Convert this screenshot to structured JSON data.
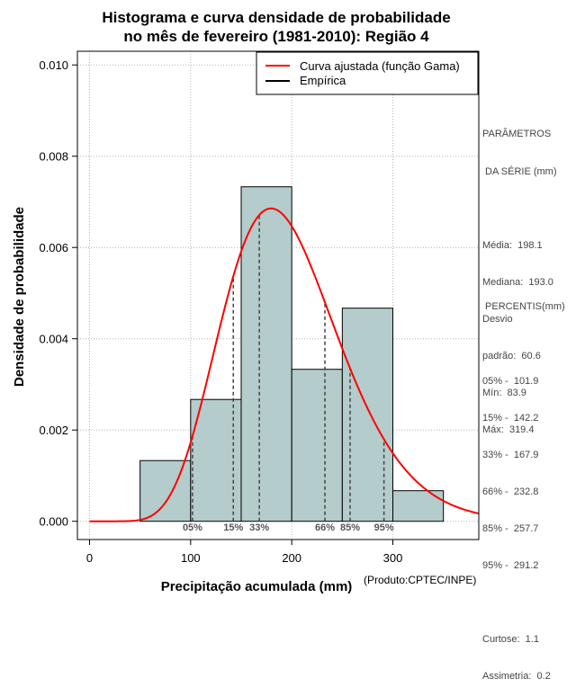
{
  "chart_data": {
    "type": "bar",
    "title_line1": "Histograma e curva densidade de probabilidade",
    "title_line2": "no mês de fevereiro (1981-2010): Região 4",
    "xlabel": "Precipitação acumulada (mm)",
    "ylabel": "Densidade de probabilidade",
    "xlim": [
      -12,
      385
    ],
    "ylim": [
      -0.0004,
      0.0103
    ],
    "x_ticks": [
      0,
      100,
      200,
      300
    ],
    "y_ticks": [
      0.0,
      0.002,
      0.004,
      0.006,
      0.008,
      0.01
    ],
    "y_tick_labels": [
      "0.000",
      "0.002",
      "0.004",
      "0.006",
      "0.008",
      "0.010"
    ],
    "bins": [
      {
        "from": 50,
        "to": 100,
        "density": 0.00133
      },
      {
        "from": 100,
        "to": 150,
        "density": 0.00267
      },
      {
        "from": 150,
        "to": 200,
        "density": 0.00733
      },
      {
        "from": 200,
        "to": 250,
        "density": 0.00333
      },
      {
        "from": 250,
        "to": 300,
        "density": 0.00467
      },
      {
        "from": 300,
        "to": 350,
        "density": 0.00067
      }
    ],
    "gamma_curve": {
      "name": "Curva ajustada (função Gama)",
      "mean": 198.1,
      "sd": 60.6,
      "color": "#ff0000"
    },
    "percentile_lines": [
      {
        "label": "05%",
        "x": 101.9
      },
      {
        "label": "15%",
        "x": 142.2
      },
      {
        "label": "33%",
        "x": 167.9
      },
      {
        "label": "66%",
        "x": 232.8
      },
      {
        "label": "85%",
        "x": 257.7
      },
      {
        "label": "95%",
        "x": 291.2
      }
    ],
    "legend": [
      {
        "label": "Curva ajustada (função Gama)",
        "color": "#ff0000"
      },
      {
        "label": "Empírica",
        "color": "#000000"
      }
    ],
    "bar_color": "#b4cccb",
    "grid": true,
    "legend_position": "top-right"
  },
  "stats": {
    "header1": "PARÂMETROS",
    "header2": " DA SÉRIE (mm)",
    "media": "Média:  198.1",
    "mediana": "Mediana:  193.0",
    "desvio1": "Desvio",
    "desvio2": "padrão:  60.6",
    "min": "Mín:  83.9",
    "max": "Máx:  319.4",
    "percentis_header": " PERCENTIS(mm)",
    "p05": "05% -  101.9",
    "p15": "15% -  142.2",
    "p33": "33% -  167.9",
    "p66": "66% -  232.8",
    "p85": "85% -  257.7",
    "p95": "95% -  291.2",
    "curtose": "Curtose:  1.1",
    "assimetria": "Assimetria:  0.2"
  },
  "credit": "(Produto:CPTEC/INPE)"
}
